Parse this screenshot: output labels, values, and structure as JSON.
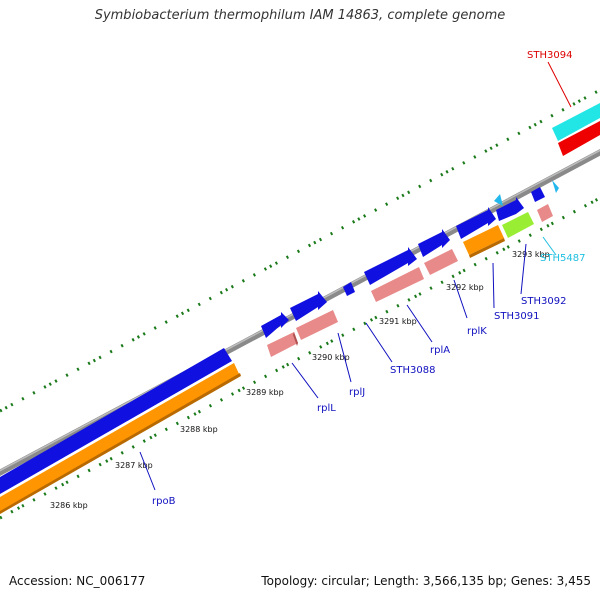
{
  "title": "Symbiobacterium thermophilum IAM 14863, complete genome",
  "footer": {
    "accession": "Accession: NC_006177",
    "summary": "Topology: circular; Length: 3,566,135 bp; Genes: 3,455"
  },
  "ticks": [
    "3286 kbp",
    "3287 kbp",
    "3288 kbp",
    "3289 kbp",
    "3290 kbp",
    "3291 kbp",
    "3292 kbp",
    "3293 kbp"
  ],
  "gene_labels": {
    "rpoB": "rpoB",
    "rplL": "rplL",
    "rplJ": "rplJ",
    "STH3088": "STH3088",
    "rplA": "rplA",
    "rplK": "rplK",
    "STH3091": "STH3091",
    "STH3092": "STH3092",
    "STH5487": "STH5487",
    "STH3094": "STH3094"
  },
  "colors": {
    "cds": "#1010e0",
    "rna": "#e88a8a",
    "orange": "#ff9500",
    "green": "#99ee33",
    "cyan": "#22e5e5",
    "red": "#ee0000",
    "backbone": "#8a8a8a",
    "tick": "#1a7a1a",
    "label_blue": "#1010c0",
    "label_cyan": "#20c0e0",
    "label_red": "#dd0000"
  }
}
